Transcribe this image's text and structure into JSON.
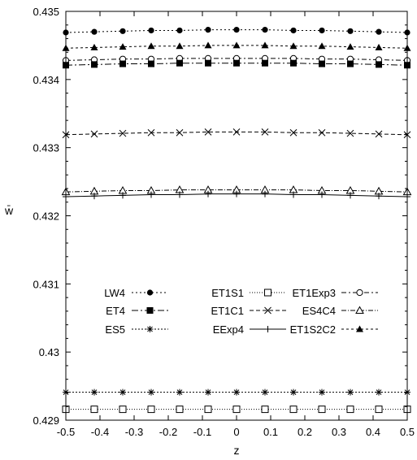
{
  "chart_data": {
    "type": "line",
    "xlabel": "z",
    "ylabel": "w̄",
    "xlim": [
      -0.5,
      0.5
    ],
    "ylim": [
      0.429,
      0.435
    ],
    "x_ticks": [
      "-0.5",
      "-0.4",
      "-0.3",
      "-0.2",
      "-0.1",
      "0",
      "0.1",
      "0.2",
      "0.3",
      "0.4",
      "0.5"
    ],
    "y_ticks": [
      "0.429",
      "0.43",
      "0.431",
      "0.432",
      "0.433",
      "0.434",
      "0.435"
    ],
    "grid": false,
    "legend_placement": "lower-center",
    "x": [
      -0.5,
      -0.4167,
      -0.3333,
      -0.25,
      -0.1667,
      -0.0833,
      0,
      0.0833,
      0.1667,
      0.25,
      0.3333,
      0.4167,
      0.5
    ],
    "series": [
      {
        "name": "LW4",
        "marker": "filled-circle",
        "dash": "2,3",
        "values": [
          0.43469,
          0.4347,
          0.43471,
          0.43472,
          0.43472,
          0.43473,
          0.43473,
          0.43473,
          0.43472,
          0.43472,
          0.43471,
          0.4347,
          0.43469
        ]
      },
      {
        "name": "ET1S1",
        "marker": "open-square",
        "dash": "1,2",
        "values": [
          0.42916,
          0.42916,
          0.42916,
          0.42916,
          0.42916,
          0.42916,
          0.42916,
          0.42916,
          0.42916,
          0.42916,
          0.42916,
          0.42916,
          0.42916
        ]
      },
      {
        "name": "ET1Exp3",
        "marker": "open-circle",
        "dash": "6,3,2,3",
        "values": [
          0.43428,
          0.43429,
          0.4343,
          0.4343,
          0.43431,
          0.43431,
          0.43431,
          0.43431,
          0.43431,
          0.4343,
          0.4343,
          0.43429,
          0.43428
        ]
      },
      {
        "name": "ET4",
        "marker": "filled-square",
        "dash": "8,3,2,3",
        "values": [
          0.43421,
          0.43422,
          0.43423,
          0.43423,
          0.43424,
          0.43424,
          0.43424,
          0.43424,
          0.43424,
          0.43423,
          0.43423,
          0.43422,
          0.43421
        ]
      },
      {
        "name": "ET1C1",
        "marker": "x-cross",
        "dash": "5,3",
        "values": [
          0.43319,
          0.4332,
          0.43321,
          0.43322,
          0.43322,
          0.43323,
          0.43323,
          0.43323,
          0.43322,
          0.43322,
          0.43321,
          0.4332,
          0.43319
        ]
      },
      {
        "name": "ES4C4",
        "marker": "open-triangle",
        "dash": "6,2,1,2",
        "values": [
          0.43235,
          0.43236,
          0.43237,
          0.43237,
          0.43238,
          0.43238,
          0.43238,
          0.43238,
          0.43238,
          0.43237,
          0.43237,
          0.43236,
          0.43235
        ]
      },
      {
        "name": "ES5",
        "marker": "asterisk",
        "dash": "2,2",
        "values": [
          0.42941,
          0.42941,
          0.42941,
          0.42941,
          0.42941,
          0.42941,
          0.42941,
          0.42941,
          0.42941,
          0.42941,
          0.42941,
          0.42941,
          0.42941
        ]
      },
      {
        "name": "EExp4",
        "marker": "plus",
        "dash": "",
        "values": [
          0.43228,
          0.43229,
          0.4323,
          0.43231,
          0.43231,
          0.43232,
          0.43232,
          0.43232,
          0.43231,
          0.43231,
          0.4323,
          0.43229,
          0.43228
        ]
      },
      {
        "name": "ET1S2C2",
        "marker": "filled-triangle",
        "dash": "3,3",
        "values": [
          0.43446,
          0.43447,
          0.43448,
          0.43449,
          0.43449,
          0.4345,
          0.4345,
          0.4345,
          0.43449,
          0.43449,
          0.43448,
          0.43447,
          0.43446
        ]
      }
    ]
  }
}
